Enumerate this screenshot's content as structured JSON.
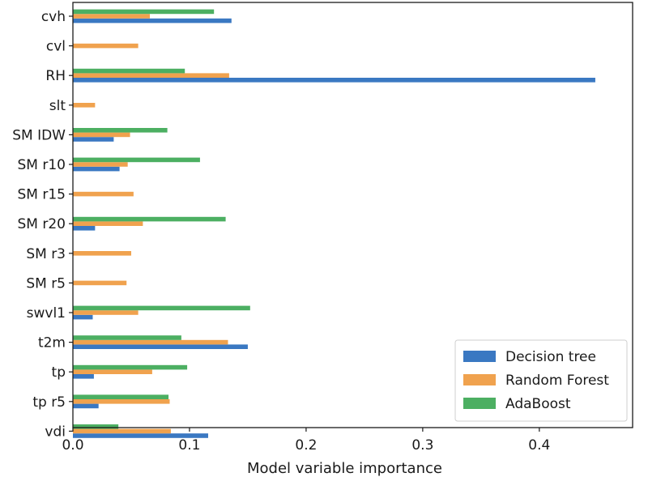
{
  "chart_data": {
    "type": "bar",
    "orientation": "horizontal",
    "title": "",
    "xlabel": "Model variable importance",
    "ylabel": "",
    "xlim": [
      0,
      0.48
    ],
    "xticks": [
      0.0,
      0.1,
      0.2,
      0.3,
      0.4
    ],
    "xtick_labels": [
      "0.0",
      "0.1",
      "0.2",
      "0.3",
      "0.4"
    ],
    "grid": false,
    "legend_position": "bottom-right",
    "categories": [
      "cvh",
      "cvl",
      "RH",
      "slt",
      "SM IDW",
      "SM r10",
      "SM r15",
      "SM r20",
      "SM r3",
      "SM r5",
      "swvl1",
      "t2m",
      "tp",
      "tp r5",
      "vdi"
    ],
    "series": [
      {
        "name": "Decision tree",
        "color": "#3a78c2",
        "values": [
          0.136,
          0.0,
          0.448,
          0.0,
          0.035,
          0.04,
          0.0,
          0.019,
          0.0,
          0.0,
          0.017,
          0.15,
          0.018,
          0.022,
          0.116
        ]
      },
      {
        "name": "Random Forest",
        "color": "#f0a24e",
        "values": [
          0.066,
          0.056,
          0.134,
          0.019,
          0.049,
          0.047,
          0.052,
          0.06,
          0.05,
          0.046,
          0.056,
          0.133,
          0.068,
          0.083,
          0.084
        ]
      },
      {
        "name": "AdaBoost",
        "color": "#4caf62",
        "values": [
          0.121,
          0.0,
          0.096,
          0.0,
          0.081,
          0.109,
          0.0,
          0.131,
          0.0,
          0.0,
          0.152,
          0.093,
          0.098,
          0.082,
          0.039
        ]
      }
    ]
  }
}
